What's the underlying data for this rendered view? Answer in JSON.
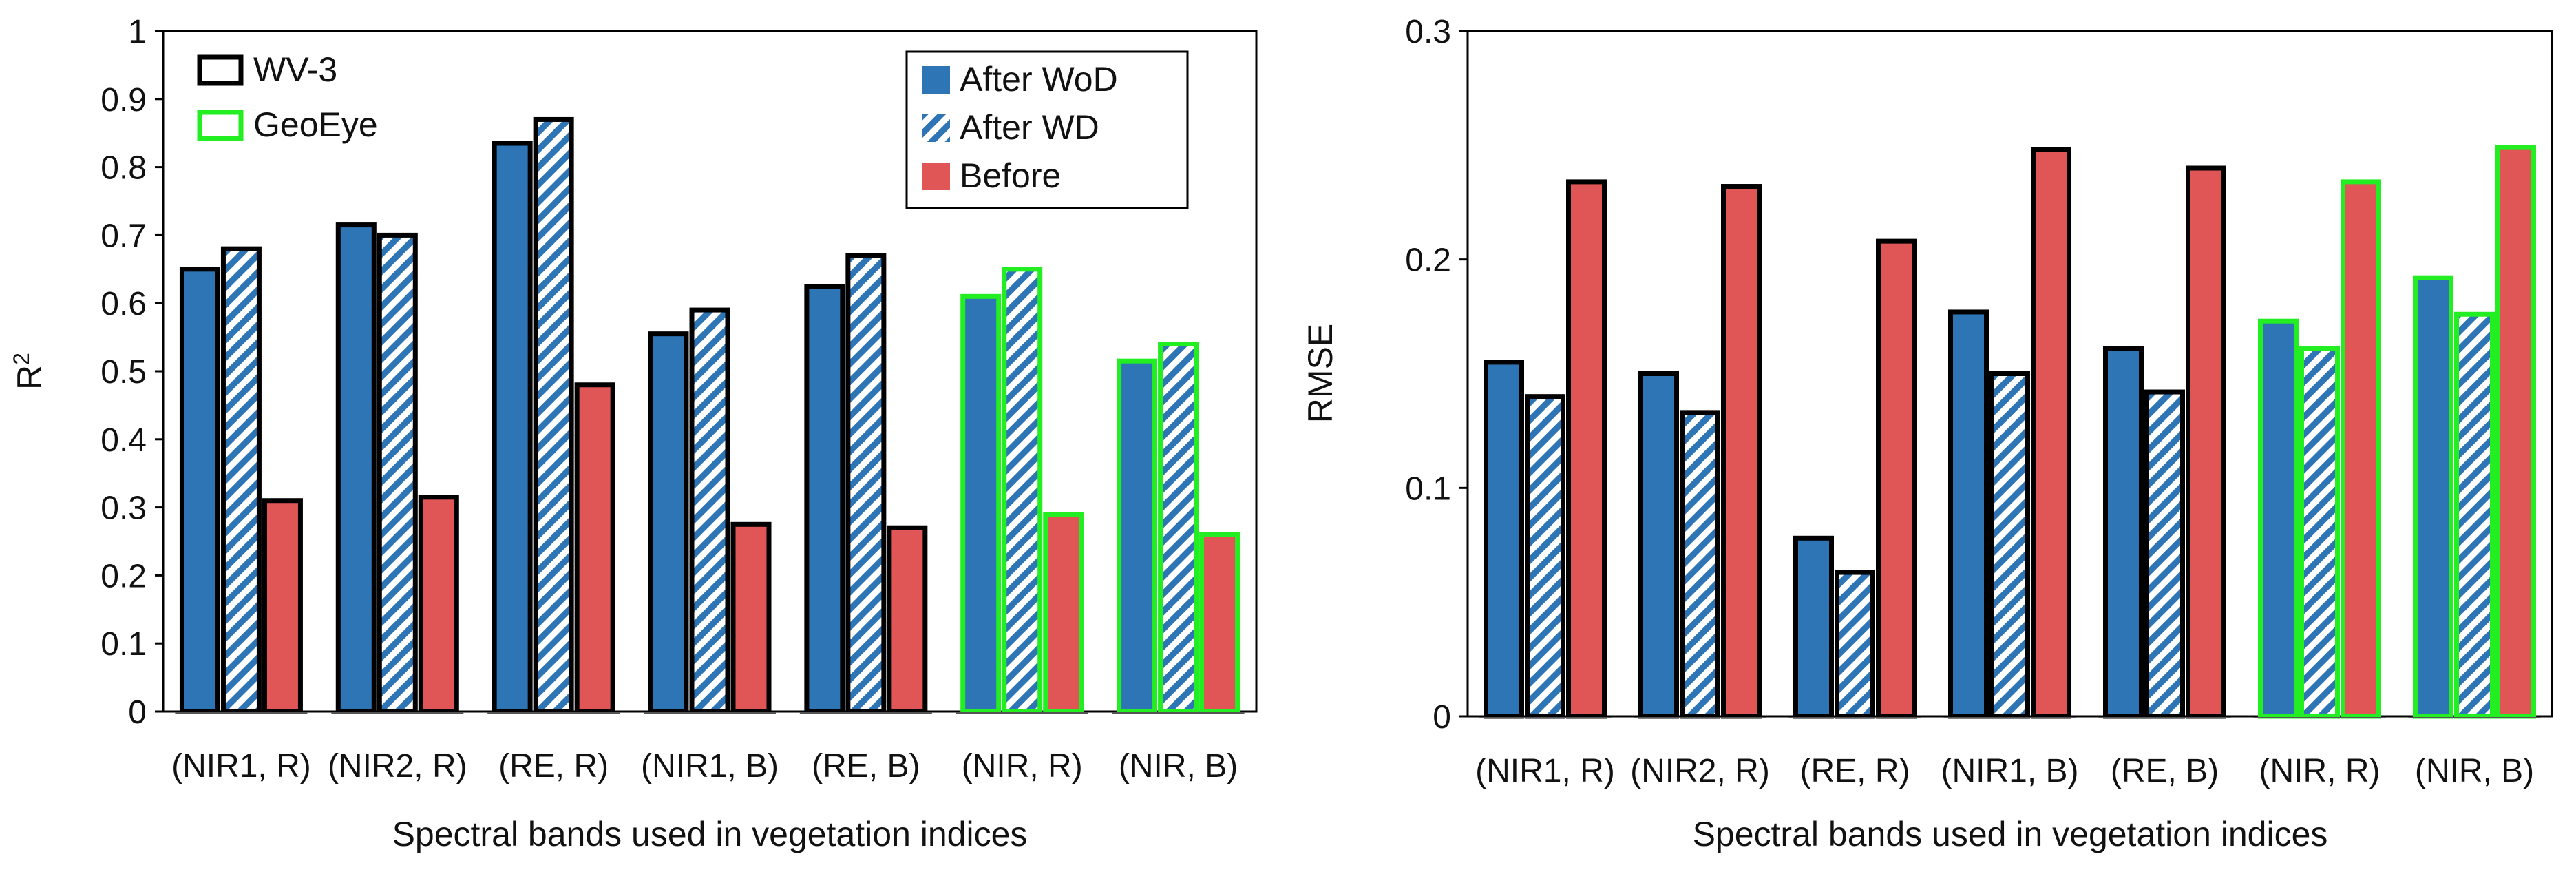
{
  "colors": {
    "after_wod": "#2e75b6",
    "after_wd_stripe": "#2e75b6",
    "before": "#e05555",
    "wv3_border": "#000000",
    "geoeye_border": "#22ee22"
  },
  "chart_data": [
    {
      "type": "bar",
      "panel": "left",
      "title": "",
      "xlabel": "Spectral bands used in vegetation indices",
      "ylabel_base": "R",
      "ylabel_sup": "2",
      "ylim": [
        0,
        1
      ],
      "yticks": [
        "0",
        "0.1",
        "0.2",
        "0.3",
        "0.4",
        "0.5",
        "0.6",
        "0.7",
        "0.8",
        "0.9",
        "1"
      ],
      "categories": [
        "(NIR1, R)",
        "(NIR2, R)",
        "(RE, R)",
        "(NIR1, B)",
        "(RE, B)",
        "(NIR, R)",
        "(NIR, B)"
      ],
      "sensor": [
        "WV-3",
        "WV-3",
        "WV-3",
        "WV-3",
        "WV-3",
        "GeoEye",
        "GeoEye"
      ],
      "series": [
        {
          "name": "After WoD",
          "values": [
            0.65,
            0.715,
            0.835,
            0.555,
            0.625,
            0.61,
            0.515
          ]
        },
        {
          "name": "After WD",
          "values": [
            0.68,
            0.7,
            0.87,
            0.59,
            0.67,
            0.65,
            0.54
          ]
        },
        {
          "name": "Before",
          "values": [
            0.31,
            0.315,
            0.48,
            0.275,
            0.27,
            0.29,
            0.26
          ]
        }
      ],
      "legend_sensor": [
        "WV-3",
        "GeoEye"
      ],
      "legend_series": [
        "After WoD",
        "After WD",
        "Before"
      ]
    },
    {
      "type": "bar",
      "panel": "right",
      "title": "",
      "xlabel": "Spectral bands used in vegetation indices",
      "ylabel": "RMSE",
      "ylim": [
        0,
        0.3
      ],
      "yticks": [
        "0",
        "0.1",
        "0.2",
        "0.3"
      ],
      "categories": [
        "(NIR1, R)",
        "(NIR2, R)",
        "(RE, R)",
        "(NIR1, B)",
        "(RE, B)",
        "(NIR, R)",
        "(NIR, B)"
      ],
      "sensor": [
        "WV-3",
        "WV-3",
        "WV-3",
        "WV-3",
        "WV-3",
        "GeoEye",
        "GeoEye"
      ],
      "series": [
        {
          "name": "After WoD",
          "values": [
            0.155,
            0.15,
            0.078,
            0.177,
            0.161,
            0.173,
            0.192
          ]
        },
        {
          "name": "After WD",
          "values": [
            0.14,
            0.133,
            0.063,
            0.15,
            0.142,
            0.161,
            0.176
          ]
        },
        {
          "name": "Before",
          "values": [
            0.234,
            0.232,
            0.208,
            0.248,
            0.24,
            0.234,
            0.249
          ]
        }
      ]
    }
  ]
}
